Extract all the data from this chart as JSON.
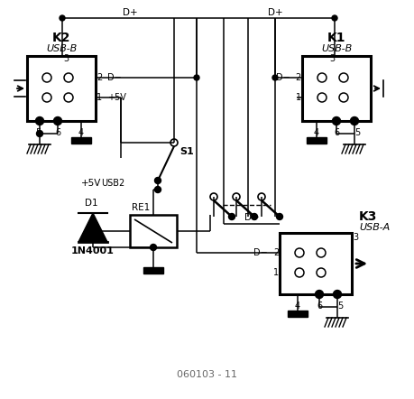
{
  "bg": "#ffffff",
  "caption": "060103 - 11",
  "k2_label": "K2",
  "k2_sub": "USB-B",
  "k1_label": "K1",
  "k1_sub": "USB-B",
  "k3_label": "K3",
  "k3_sub": "USB-A",
  "d1_label": "D1",
  "d1_part": "1N4001",
  "re1_label": "RE1",
  "s1_label": "S1",
  "vcc": "+5V",
  "usb2": "USB2",
  "dplus": "D+",
  "dminus": "D−"
}
